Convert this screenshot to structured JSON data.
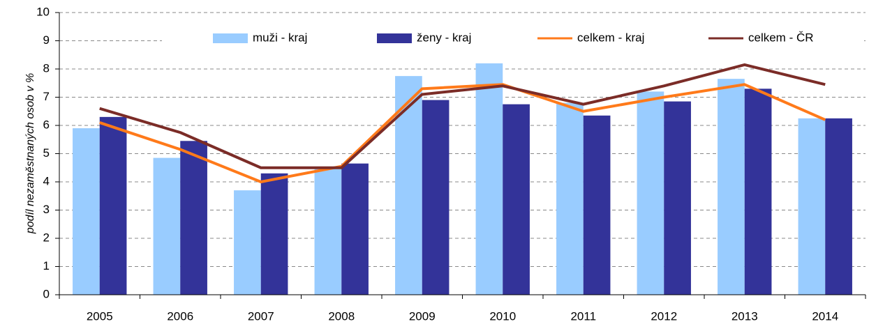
{
  "chart_data": {
    "type": "combo",
    "ylabel": "podíl nezaměstnaných osob v %",
    "categories": [
      "2005",
      "2006",
      "2007",
      "2008",
      "2009",
      "2010",
      "2011",
      "2012",
      "2013",
      "2014"
    ],
    "series": [
      {
        "name": "muži - kraj",
        "kind": "bar",
        "color": "#99ccff",
        "values": [
          5.9,
          4.85,
          3.7,
          4.5,
          7.75,
          8.2,
          6.8,
          7.2,
          7.65,
          6.25
        ]
      },
      {
        "name": "ženy - kraj",
        "kind": "bar",
        "color": "#333399",
        "values": [
          6.3,
          5.45,
          4.3,
          4.65,
          6.9,
          6.75,
          6.35,
          6.85,
          7.3,
          6.25
        ]
      },
      {
        "name": "celkem - kraj",
        "kind": "line",
        "color": "#ff7a1a",
        "values": [
          6.1,
          5.15,
          4.0,
          4.55,
          7.3,
          7.45,
          6.5,
          7.0,
          7.45,
          6.2
        ]
      },
      {
        "name": "celkem - ČR",
        "kind": "line",
        "color": "#7b2c27",
        "values": [
          6.6,
          5.75,
          4.5,
          4.5,
          7.1,
          7.4,
          6.75,
          7.4,
          8.15,
          7.45
        ]
      }
    ],
    "ylim": [
      0,
      10
    ],
    "yticks": [
      0,
      1,
      2,
      3,
      4,
      5,
      6,
      7,
      8,
      9,
      10
    ],
    "grid": true,
    "legend": "top"
  }
}
